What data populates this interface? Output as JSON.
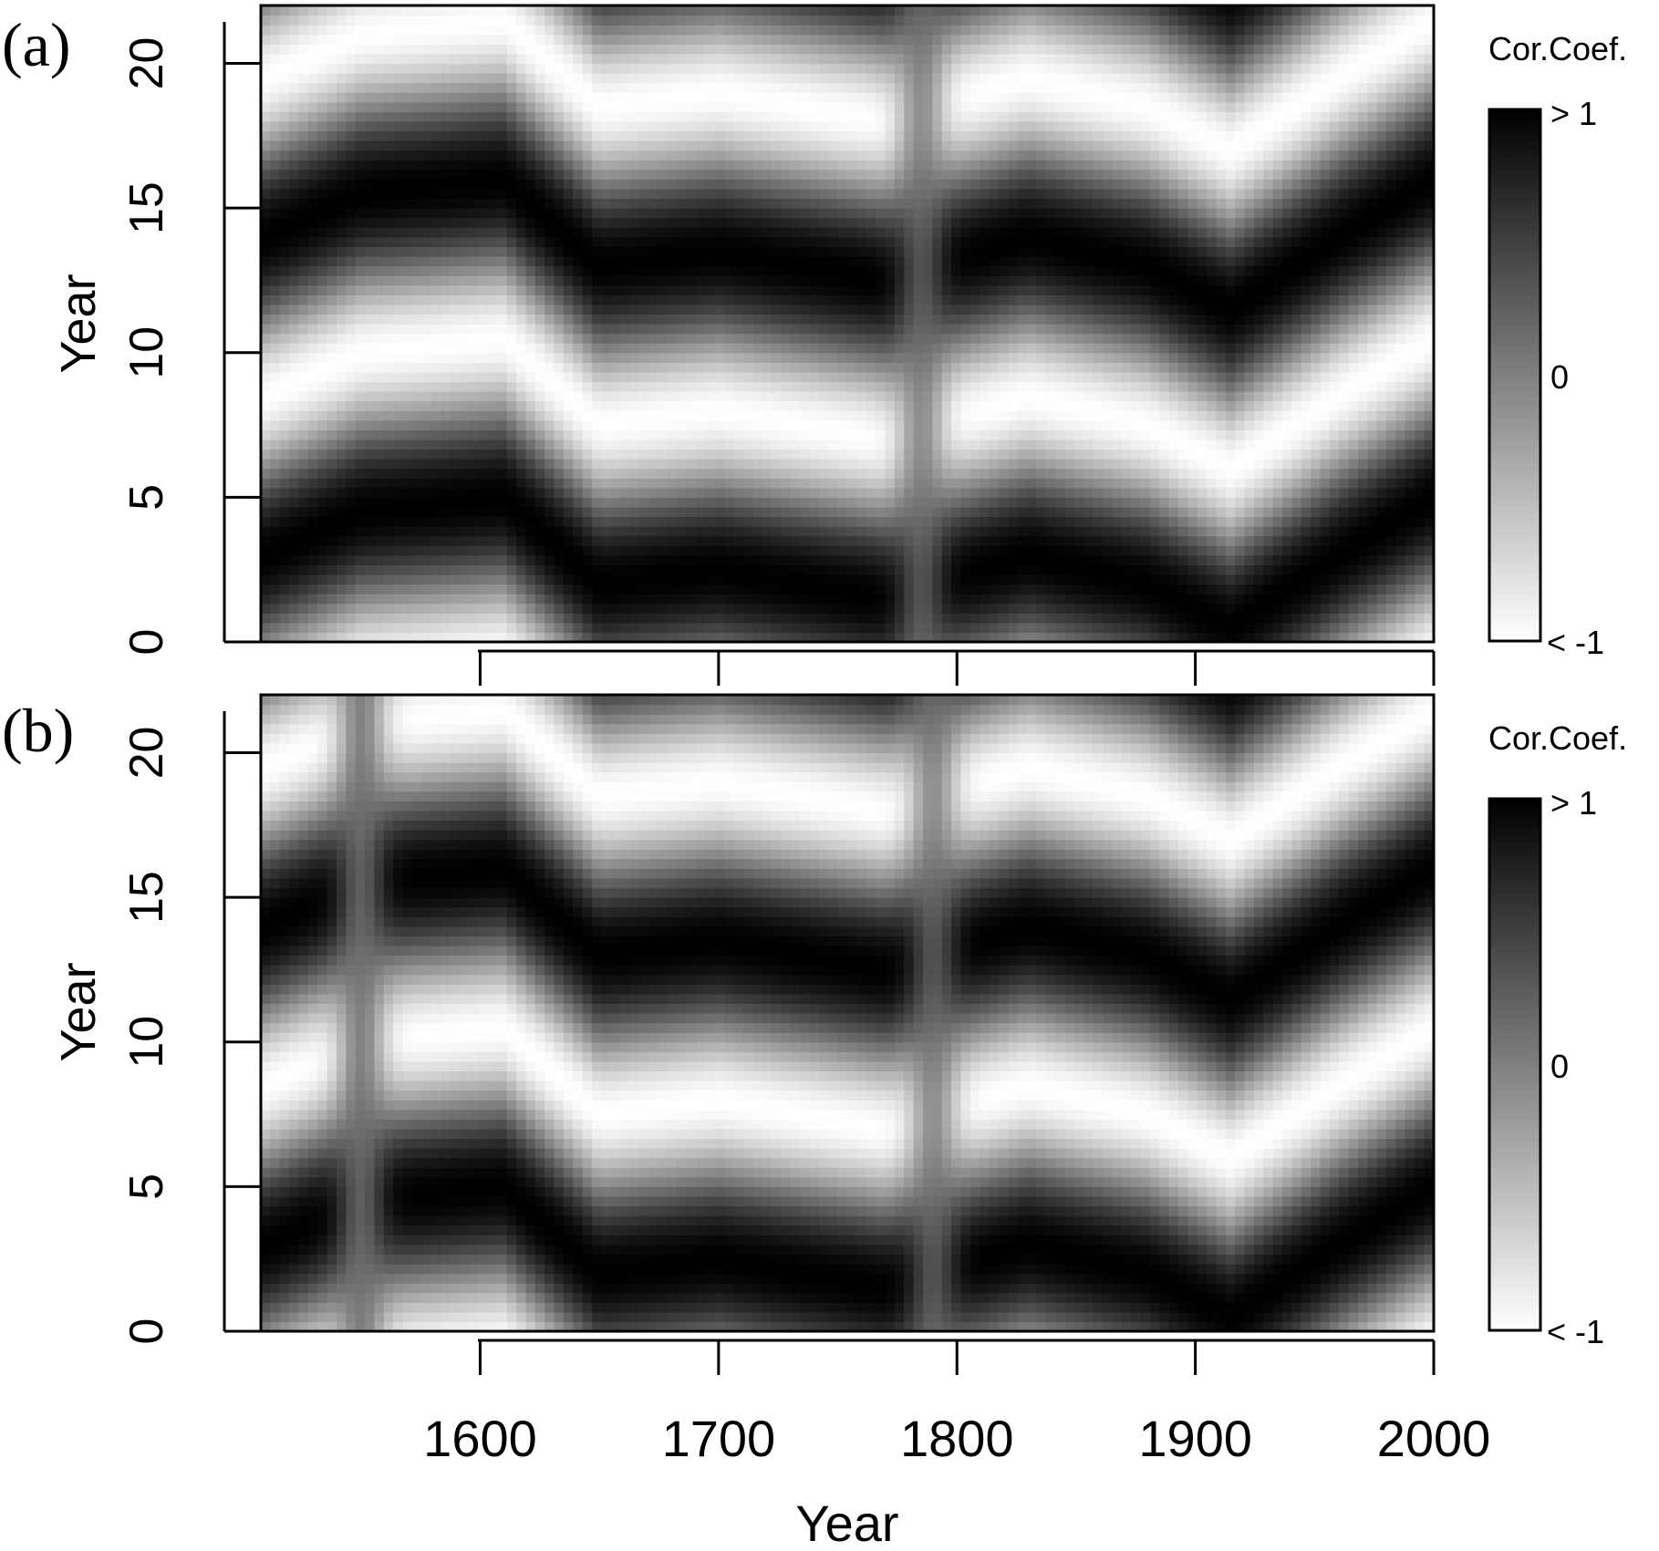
{
  "chart_data": [
    {
      "type": "heatmap",
      "panel_label": "(a)",
      "xlabel": "",
      "ylabel": "Year",
      "xlim": [
        1508,
        2000
      ],
      "ylim": [
        0,
        22
      ],
      "x_ticks": [
        1600,
        1700,
        1800,
        1900,
        2000
      ],
      "x_tick_labels": [
        "",
        "",
        "",
        "",
        ""
      ],
      "y_ticks": [
        0,
        5,
        10,
        15,
        20
      ],
      "y_tick_labels": [
        "0",
        "5",
        "10",
        "15",
        "20"
      ],
      "colorbar": {
        "title": "Cor.Coef.",
        "max_label": "> 1",
        "mid_label": "0",
        "min_label": "< -1",
        "range": [
          -1,
          1
        ],
        "colors": [
          "#ffffff",
          "#000000"
        ]
      },
      "notes": "Gray-scale correlation map; dark = positive, light = negative; two dark bands near lags ~3 and ~13-14 with a bright band near ~9 and ~19; a strong distortion near 1780.",
      "pattern": {
        "band_centers_by_x": [
          {
            "x": 1510,
            "dark": [
              3,
              14.5
            ]
          },
          {
            "x": 1550,
            "dark": [
              4.5,
              16
            ]
          },
          {
            "x": 1610,
            "dark": [
              5,
              15.5
            ]
          },
          {
            "x": 1650,
            "dark": [
              2,
              13
            ]
          },
          {
            "x": 1700,
            "dark": [
              2.5,
              13.5
            ]
          },
          {
            "x": 1770,
            "dark": [
              1.5,
              12.5
            ]
          },
          {
            "x": 1830,
            "dark": [
              3,
              14
            ]
          },
          {
            "x": 1880,
            "dark": [
              2,
              13
            ]
          },
          {
            "x": 1915,
            "dark": [
              0.5,
              10.5,
              20.5
            ]
          },
          {
            "x": 1960,
            "dark": [
              3,
              14
            ]
          },
          {
            "x": 2000,
            "dark": [
              5,
              15.5
            ]
          }
        ],
        "period": 11,
        "vertical_artifacts": [
          {
            "x": 1785,
            "strength": 0.75
          }
        ]
      }
    },
    {
      "type": "heatmap",
      "panel_label": "(b)",
      "xlabel": "Year",
      "ylabel": "Year",
      "xlim": [
        1508,
        2000
      ],
      "ylim": [
        0,
        22
      ],
      "x_ticks": [
        1600,
        1700,
        1800,
        1900,
        2000
      ],
      "x_tick_labels": [
        "1600",
        "1700",
        "1800",
        "1900",
        "2000"
      ],
      "y_ticks": [
        0,
        5,
        10,
        15,
        20
      ],
      "y_tick_labels": [
        "0",
        "5",
        "10",
        "15",
        "20"
      ],
      "colorbar": {
        "title": "Cor.Coef.",
        "max_label": "> 1",
        "mid_label": "0",
        "min_label": "< -1",
        "range": [
          -1,
          1
        ],
        "colors": [
          "#ffffff",
          "#000000"
        ]
      },
      "notes": "Same structure as (a) with additional gray vertical stripes near 1550 and 1790.",
      "pattern": {
        "band_centers_by_x": [
          {
            "x": 1510,
            "dark": [
              3,
              14.5
            ]
          },
          {
            "x": 1550,
            "dark": [
              4.5,
              16
            ]
          },
          {
            "x": 1610,
            "dark": [
              5,
              15.5
            ]
          },
          {
            "x": 1650,
            "dark": [
              2,
              13
            ]
          },
          {
            "x": 1700,
            "dark": [
              2.5,
              13.5
            ]
          },
          {
            "x": 1770,
            "dark": [
              1.5,
              12.5
            ]
          },
          {
            "x": 1830,
            "dark": [
              3,
              14
            ]
          },
          {
            "x": 1880,
            "dark": [
              2,
              13
            ]
          },
          {
            "x": 1915,
            "dark": [
              0.5,
              10.5,
              20.5
            ]
          },
          {
            "x": 1960,
            "dark": [
              3,
              14
            ]
          },
          {
            "x": 2000,
            "dark": [
              5,
              15.5
            ]
          }
        ],
        "period": 11,
        "vertical_artifacts": [
          {
            "x": 1550,
            "strength": 0.85
          },
          {
            "x": 1790,
            "strength": 0.75
          }
        ]
      }
    }
  ]
}
